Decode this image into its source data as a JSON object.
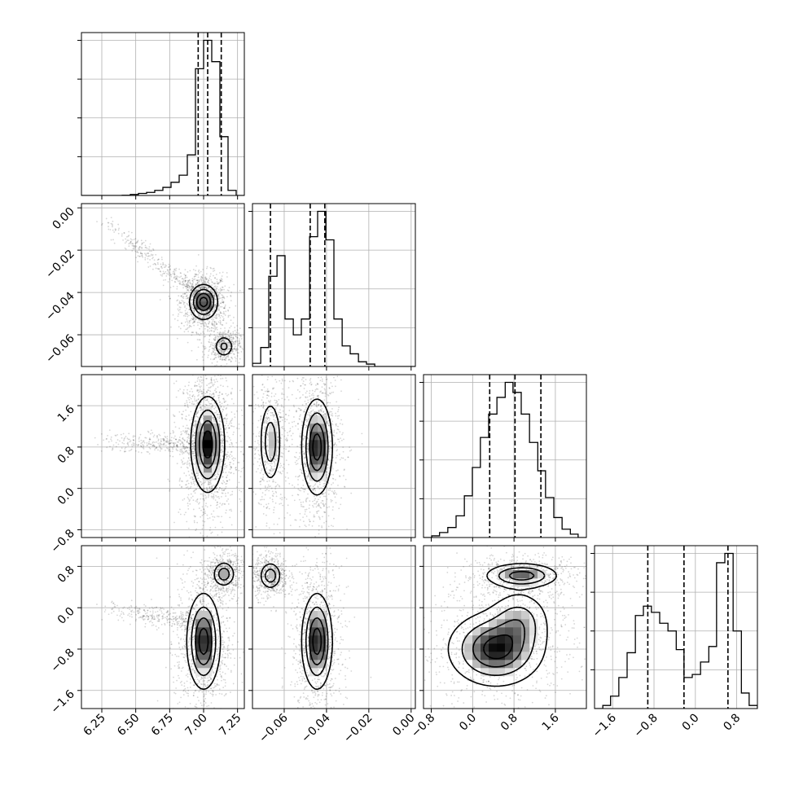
{
  "chart_data": {
    "type": "corner",
    "grid": true,
    "colors": {
      "hist": "#000000",
      "points": "#000000",
      "grid": "#b0b0b0"
    },
    "parameters": [
      {
        "range": [
          6.1,
          7.3
        ],
        "ticks": [
          6.25,
          6.5,
          6.75,
          7.0,
          7.25
        ],
        "tick_labels": [
          "6.25",
          "6.50",
          "6.75",
          "7.00",
          "7.25"
        ],
        "quantiles": [
          6.96,
          7.03,
          7.13
        ],
        "hist_edges": [
          6.1,
          6.16,
          6.22,
          6.28,
          6.34,
          6.4,
          6.46,
          6.52,
          6.58,
          6.64,
          6.7,
          6.76,
          6.82,
          6.88,
          6.94,
          7.0,
          7.06,
          7.12,
          7.18,
          7.24,
          7.3
        ],
        "hist_counts": [
          0.0,
          0.0,
          0.0,
          0.0,
          0.0,
          0.002,
          0.01,
          0.02,
          0.03,
          0.05,
          0.08,
          0.13,
          0.2,
          0.4,
          1.25,
          1.53,
          1.32,
          0.58,
          0.05,
          0.0
        ]
      },
      {
        "range": [
          -0.075,
          0.002
        ],
        "ticks": [
          -0.06,
          -0.04,
          -0.02,
          0.0
        ],
        "tick_labels": [
          "−0.06",
          "−0.04",
          "−0.02",
          "0.00"
        ],
        "quantiles": [
          -0.0665,
          -0.0477,
          -0.0408
        ],
        "hist_edges": [
          -0.075,
          -0.0711,
          -0.0673,
          -0.0634,
          -0.0596,
          -0.0557,
          -0.0519,
          -0.048,
          -0.0442,
          -0.0403,
          -0.0365,
          -0.0326,
          -0.0288,
          -0.0249,
          -0.0211,
          -0.0172,
          -0.0134,
          -0.0095,
          -0.0057,
          -0.0018,
          0.002
        ],
        "hist_counts": [
          0.02,
          0.12,
          0.57,
          0.7,
          0.3,
          0.2,
          0.3,
          0.82,
          0.98,
          0.8,
          0.3,
          0.13,
          0.08,
          0.03,
          0.015,
          0.0,
          0.0,
          0.0,
          0.0,
          0.0
        ]
      },
      {
        "range": [
          -0.95,
          2.2
        ],
        "ticks": [
          -0.8,
          0.0,
          0.8,
          1.6
        ],
        "tick_labels": [
          "−0.8",
          "0.0",
          "0.8",
          "1.6"
        ],
        "quantiles": [
          0.33,
          0.82,
          1.32
        ],
        "hist_edges": [
          -0.95,
          -0.79,
          -0.64,
          -0.48,
          -0.32,
          -0.16,
          -0.005,
          0.15,
          0.31,
          0.47,
          0.63,
          0.78,
          0.94,
          1.1,
          1.26,
          1.41,
          1.57,
          1.73,
          1.89,
          2.04,
          2.2
        ],
        "hist_counts": [
          0.0,
          0.01,
          0.03,
          0.06,
          0.13,
          0.25,
          0.42,
          0.6,
          0.74,
          0.84,
          0.93,
          0.87,
          0.74,
          0.57,
          0.4,
          0.24,
          0.12,
          0.05,
          0.02,
          0.0
        ]
      },
      {
        "range": [
          -1.95,
          1.2
        ],
        "ticks": [
          -1.6,
          -0.8,
          0.0,
          0.8
        ],
        "tick_labels": [
          "−1.6",
          "−0.8",
          "0.0",
          "0.8"
        ],
        "quantiles": [
          -0.92,
          -0.22,
          0.63
        ],
        "hist_edges": [
          -1.95,
          -1.79,
          -1.64,
          -1.48,
          -1.32,
          -1.16,
          -1.005,
          -0.85,
          -0.69,
          -0.53,
          -0.37,
          -0.22,
          -0.06,
          0.1,
          0.26,
          0.41,
          0.57,
          0.73,
          0.89,
          1.04,
          1.2
        ],
        "hist_counts": [
          0.0,
          0.02,
          0.08,
          0.2,
          0.36,
          0.6,
          0.66,
          0.62,
          0.55,
          0.5,
          0.38,
          0.2,
          0.22,
          0.3,
          0.4,
          0.94,
          1.0,
          0.5,
          0.1,
          0.02
        ]
      }
    ],
    "pairs": [
      {
        "row": 1,
        "col": 0,
        "modes": [
          {
            "cx": 7.0,
            "cy": -0.0445,
            "sx": 0.05,
            "sy": 0.004,
            "w": 0.7
          },
          {
            "cx": 7.15,
            "cy": -0.0655,
            "sx": 0.035,
            "sy": 0.0025,
            "w": 0.3
          }
        ],
        "tail": [
          {
            "x": 6.2,
            "y": -0.003
          },
          {
            "x": 6.95,
            "y": -0.04
          }
        ]
      },
      {
        "row": 2,
        "col": 0,
        "modes": [
          {
            "cx": 7.03,
            "cy": 0.85,
            "sx": 0.06,
            "sy": 0.45,
            "w": 1.0
          }
        ],
        "tail": [
          {
            "x": 6.2,
            "y": 0.9
          },
          {
            "x": 6.95,
            "y": 0.85
          }
        ]
      },
      {
        "row": 2,
        "col": 1,
        "modes": [
          {
            "cx": -0.0665,
            "cy": 0.9,
            "sx": 0.0025,
            "sy": 0.4,
            "w": 0.35
          },
          {
            "cx": -0.0445,
            "cy": 0.8,
            "sx": 0.0035,
            "sy": 0.45,
            "w": 0.65
          }
        ],
        "tail": []
      },
      {
        "row": 3,
        "col": 0,
        "modes": [
          {
            "cx": 7.15,
            "cy": 0.65,
            "sx": 0.04,
            "sy": 0.12,
            "w": 0.35
          },
          {
            "cx": 7.0,
            "cy": -0.65,
            "sx": 0.06,
            "sy": 0.45,
            "w": 0.65
          }
        ],
        "tail": [
          {
            "x": 6.25,
            "y": 0.0
          },
          {
            "x": 6.95,
            "y": -0.3
          }
        ]
      },
      {
        "row": 3,
        "col": 1,
        "modes": [
          {
            "cx": -0.0665,
            "cy": 0.62,
            "sx": 0.0025,
            "sy": 0.13,
            "w": 0.35
          },
          {
            "cx": -0.0445,
            "cy": -0.65,
            "sx": 0.0035,
            "sy": 0.45,
            "w": 0.65
          }
        ],
        "tail": []
      },
      {
        "row": 3,
        "col": 2,
        "modes": [
          {
            "cx": 0.95,
            "cy": 0.62,
            "sx": 0.35,
            "sy": 0.12,
            "w": 0.35
          },
          {
            "cx": 0.45,
            "cy": -0.8,
            "sx": 0.45,
            "sy": 0.35,
            "w": 0.45
          },
          {
            "cx": 0.9,
            "cy": -0.25,
            "sx": 0.3,
            "sy": 0.3,
            "w": 0.2
          }
        ],
        "tail": []
      }
    ]
  }
}
